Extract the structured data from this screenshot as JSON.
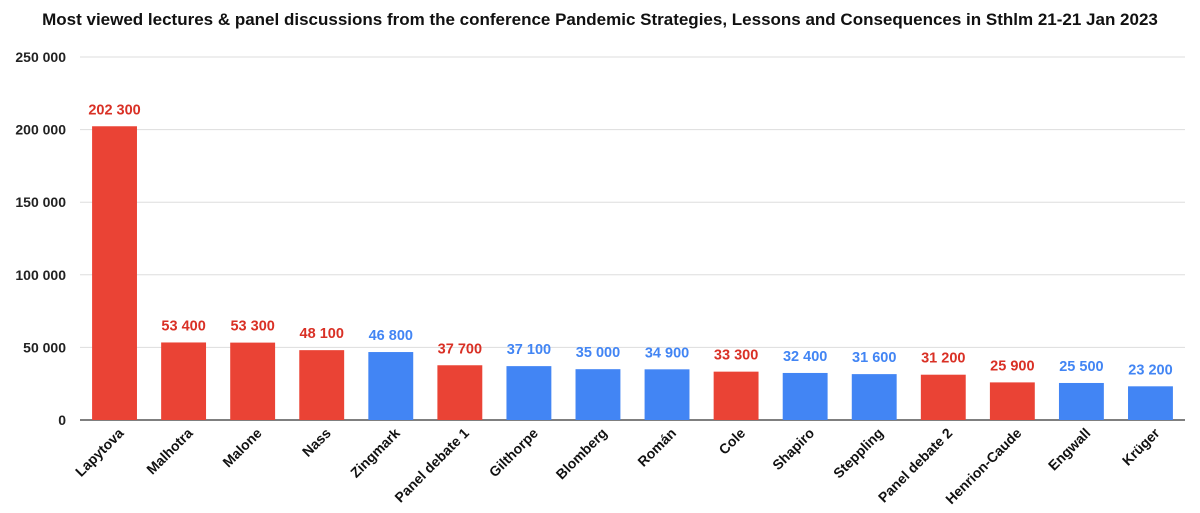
{
  "chart_data": {
    "type": "bar",
    "title": "Most viewed lectures & panel discussions from the conference Pandemic Strategies, Lessons and Consequences in Sthlm 21-21 Jan 2023",
    "xlabel": "",
    "ylabel": "",
    "ylim": [
      0,
      250000
    ],
    "yticks": [
      0,
      50000,
      100000,
      150000,
      200000,
      250000
    ],
    "ytick_labels": [
      "0",
      "50 000",
      "100 000",
      "150 000",
      "200 000",
      "250 000"
    ],
    "grid": true,
    "legend": "none",
    "categories": [
      "Lapytova",
      "Malhotra",
      "Malone",
      "Nass",
      "Zingmark",
      "Panel debate 1",
      "Gilthorpe",
      "Blomberg",
      "Román",
      "Cole",
      "Shapiro",
      "Steppling",
      "Panel debate 2",
      "Henrion-Caude",
      "Engwall",
      "Krüger"
    ],
    "values": [
      202300,
      53400,
      53300,
      48100,
      46800,
      37700,
      37100,
      35000,
      34900,
      33300,
      32400,
      31600,
      31200,
      25900,
      25500,
      23200
    ],
    "value_labels": [
      "202 300",
      "53 400",
      "53 300",
      "48 100",
      "46 800",
      "37 700",
      "37 100",
      "35 000",
      "34 900",
      "33 300",
      "32 400",
      "31 600",
      "31 200",
      "25 900",
      "25 500",
      "23 200"
    ],
    "bar_colors": [
      "#ea4335",
      "#ea4335",
      "#ea4335",
      "#ea4335",
      "#4285f4",
      "#ea4335",
      "#4285f4",
      "#4285f4",
      "#4285f4",
      "#ea4335",
      "#4285f4",
      "#4285f4",
      "#ea4335",
      "#ea4335",
      "#4285f4",
      "#4285f4"
    ],
    "label_colors": [
      "#d93025",
      "#d93025",
      "#d93025",
      "#d93025",
      "#4285f4",
      "#d93025",
      "#4285f4",
      "#4285f4",
      "#4285f4",
      "#d93025",
      "#4285f4",
      "#4285f4",
      "#d93025",
      "#d93025",
      "#4285f4",
      "#4285f4"
    ]
  }
}
